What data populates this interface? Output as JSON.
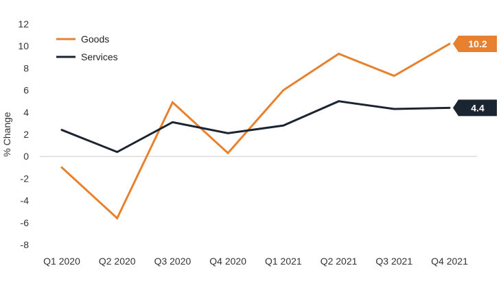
{
  "chart_data": {
    "type": "line",
    "xlabel": "",
    "ylabel": "% Change",
    "ylim": [
      -8,
      12
    ],
    "yticks": [
      -8,
      -6,
      -4,
      -2,
      0,
      2,
      4,
      6,
      8,
      10,
      12
    ],
    "categories": [
      "Q1 2020",
      "Q2 2020",
      "Q3 2020",
      "Q4 2020",
      "Q1 2021",
      "Q2 2021",
      "Q3 2021",
      "Q4 2021"
    ],
    "grid": false,
    "legend": "top-left",
    "series": [
      {
        "name": "Goods",
        "color": "#E8812F",
        "values": [
          -1.0,
          -5.6,
          4.9,
          0.3,
          6.0,
          9.3,
          7.3,
          10.2
        ],
        "end_label": "10.2"
      },
      {
        "name": "Services",
        "color": "#1B2431",
        "values": [
          2.4,
          0.4,
          3.1,
          2.1,
          2.8,
          5.0,
          4.3,
          4.4
        ],
        "end_label": "4.4"
      }
    ]
  }
}
